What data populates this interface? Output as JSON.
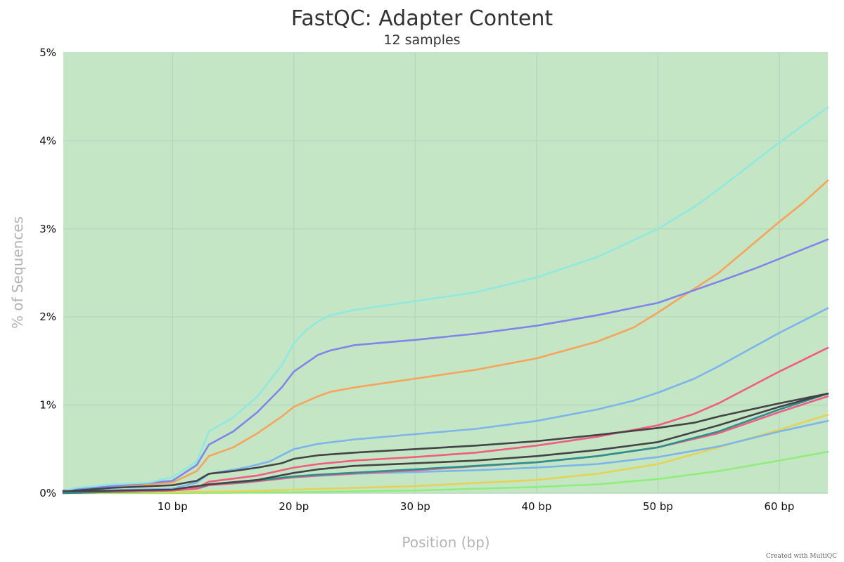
{
  "chart_data": {
    "type": "line",
    "title": "FastQC: Adapter Content",
    "subtitle": "12 samples",
    "xlabel": "Position (bp)",
    "ylabel": "% of Sequences",
    "credit": "Created with MultiQC",
    "xlim": [
      1,
      64
    ],
    "ylim": [
      0,
      5
    ],
    "x_ticks": [
      10,
      20,
      30,
      40,
      50,
      60
    ],
    "x_tick_labels": [
      "10 bp",
      "20 bp",
      "30 bp",
      "40 bp",
      "50 bp",
      "60 bp"
    ],
    "y_ticks": [
      0,
      1,
      2,
      3,
      4,
      5
    ],
    "y_tick_labels": [
      "0%",
      "1%",
      "2%",
      "3%",
      "4%",
      "5%"
    ],
    "grid": true,
    "pass_band": {
      "from": 0,
      "to": 5,
      "color": "#c4e6c4"
    },
    "series": [
      {
        "color": "#90ed7d",
        "points": [
          [
            1,
            0.0
          ],
          [
            10,
            0.0
          ],
          [
            20,
            0.01
          ],
          [
            30,
            0.03
          ],
          [
            40,
            0.07
          ],
          [
            45,
            0.1
          ],
          [
            50,
            0.16
          ],
          [
            55,
            0.25
          ],
          [
            60,
            0.37
          ],
          [
            64,
            0.47
          ]
        ]
      },
      {
        "color": "#e4d354",
        "points": [
          [
            1,
            0.0
          ],
          [
            10,
            0.01
          ],
          [
            15,
            0.02
          ],
          [
            20,
            0.04
          ],
          [
            30,
            0.08
          ],
          [
            40,
            0.15
          ],
          [
            45,
            0.22
          ],
          [
            50,
            0.33
          ],
          [
            55,
            0.52
          ],
          [
            60,
            0.72
          ],
          [
            64,
            0.89
          ]
        ]
      },
      {
        "color": "#7cb5ec",
        "points": [
          [
            1,
            0.02
          ],
          [
            10,
            0.04
          ],
          [
            13,
            0.1
          ],
          [
            15,
            0.12
          ],
          [
            20,
            0.18
          ],
          [
            25,
            0.22
          ],
          [
            30,
            0.24
          ],
          [
            35,
            0.26
          ],
          [
            40,
            0.29
          ],
          [
            45,
            0.33
          ],
          [
            50,
            0.41
          ],
          [
            55,
            0.53
          ],
          [
            60,
            0.7
          ],
          [
            64,
            0.82
          ]
        ]
      },
      {
        "color": "#f15c80",
        "points": [
          [
            1,
            0.0
          ],
          [
            10,
            0.03
          ],
          [
            12,
            0.05
          ],
          [
            13,
            0.09
          ],
          [
            16,
            0.12
          ],
          [
            20,
            0.18
          ],
          [
            22,
            0.2
          ],
          [
            30,
            0.26
          ],
          [
            40,
            0.35
          ],
          [
            45,
            0.42
          ],
          [
            50,
            0.52
          ],
          [
            55,
            0.68
          ],
          [
            60,
            0.92
          ],
          [
            64,
            1.1
          ]
        ]
      },
      {
        "color": "#2b908f",
        "points": [
          [
            1,
            0.0
          ],
          [
            10,
            0.03
          ],
          [
            12,
            0.06
          ],
          [
            13,
            0.1
          ],
          [
            16,
            0.13
          ],
          [
            20,
            0.19
          ],
          [
            22,
            0.21
          ],
          [
            30,
            0.27
          ],
          [
            40,
            0.35
          ],
          [
            45,
            0.42
          ],
          [
            50,
            0.52
          ],
          [
            55,
            0.7
          ],
          [
            60,
            0.95
          ],
          [
            64,
            1.13
          ]
        ]
      },
      {
        "color": "#f7a35c",
        "points": [
          [
            1,
            0.03
          ],
          [
            10,
            0.12
          ],
          [
            12,
            0.25
          ],
          [
            13,
            0.42
          ],
          [
            15,
            0.52
          ],
          [
            17,
            0.68
          ],
          [
            19,
            0.87
          ],
          [
            20,
            0.98
          ],
          [
            22,
            1.1
          ],
          [
            23,
            1.15
          ],
          [
            25,
            1.2
          ],
          [
            30,
            1.3
          ],
          [
            35,
            1.4
          ],
          [
            40,
            1.53
          ],
          [
            45,
            1.72
          ],
          [
            48,
            1.88
          ],
          [
            50,
            2.05
          ],
          [
            55,
            2.5
          ],
          [
            60,
            3.08
          ],
          [
            62,
            3.3
          ],
          [
            64,
            3.55
          ]
        ]
      },
      {
        "color": "#8085e9",
        "points": [
          [
            1,
            0.03
          ],
          [
            10,
            0.14
          ],
          [
            12,
            0.32
          ],
          [
            13,
            0.55
          ],
          [
            15,
            0.7
          ],
          [
            17,
            0.92
          ],
          [
            19,
            1.2
          ],
          [
            20,
            1.38
          ],
          [
            22,
            1.57
          ],
          [
            23,
            1.62
          ],
          [
            25,
            1.68
          ],
          [
            30,
            1.74
          ],
          [
            35,
            1.81
          ],
          [
            40,
            1.9
          ],
          [
            45,
            2.02
          ],
          [
            50,
            2.16
          ],
          [
            55,
            2.4
          ],
          [
            58,
            2.55
          ],
          [
            60,
            2.66
          ],
          [
            64,
            2.88
          ]
        ]
      },
      {
        "color": "#91e8e1",
        "points": [
          [
            1,
            0.02
          ],
          [
            2,
            0.06
          ],
          [
            5,
            0.1
          ],
          [
            8,
            0.12
          ],
          [
            10,
            0.18
          ],
          [
            12,
            0.36
          ],
          [
            13,
            0.7
          ],
          [
            15,
            0.86
          ],
          [
            17,
            1.1
          ],
          [
            19,
            1.45
          ],
          [
            20,
            1.7
          ],
          [
            21,
            1.85
          ],
          [
            22,
            1.95
          ],
          [
            23,
            2.02
          ],
          [
            25,
            2.08
          ],
          [
            30,
            2.18
          ],
          [
            35,
            2.28
          ],
          [
            40,
            2.45
          ],
          [
            45,
            2.68
          ],
          [
            50,
            3.0
          ],
          [
            53,
            3.25
          ],
          [
            55,
            3.45
          ],
          [
            60,
            3.98
          ],
          [
            64,
            4.38
          ]
        ]
      },
      {
        "color": "#7cb5ec",
        "points": [
          [
            1,
            0.02
          ],
          [
            10,
            0.05
          ],
          [
            12,
            0.12
          ],
          [
            13,
            0.22
          ],
          [
            16,
            0.29
          ],
          [
            18,
            0.36
          ],
          [
            20,
            0.5
          ],
          [
            22,
            0.56
          ],
          [
            25,
            0.61
          ],
          [
            30,
            0.67
          ],
          [
            35,
            0.73
          ],
          [
            40,
            0.82
          ],
          [
            45,
            0.95
          ],
          [
            48,
            1.05
          ],
          [
            50,
            1.14
          ],
          [
            53,
            1.3
          ],
          [
            55,
            1.44
          ],
          [
            60,
            1.82
          ],
          [
            64,
            2.1
          ]
        ]
      },
      {
        "color": "#f15c80",
        "points": [
          [
            1,
            0.02
          ],
          [
            10,
            0.03
          ],
          [
            12,
            0.06
          ],
          [
            13,
            0.13
          ],
          [
            17,
            0.2
          ],
          [
            20,
            0.29
          ],
          [
            22,
            0.33
          ],
          [
            25,
            0.37
          ],
          [
            30,
            0.41
          ],
          [
            35,
            0.46
          ],
          [
            40,
            0.54
          ],
          [
            45,
            0.64
          ],
          [
            50,
            0.77
          ],
          [
            53,
            0.9
          ],
          [
            55,
            1.02
          ],
          [
            60,
            1.38
          ],
          [
            64,
            1.65
          ]
        ]
      },
      {
        "color": "#434348",
        "points": [
          [
            1,
            0.02
          ],
          [
            10,
            0.04
          ],
          [
            12,
            0.08
          ],
          [
            13,
            0.1
          ],
          [
            17,
            0.15
          ],
          [
            20,
            0.23
          ],
          [
            22,
            0.27
          ],
          [
            25,
            0.31
          ],
          [
            30,
            0.34
          ],
          [
            35,
            0.37
          ],
          [
            40,
            0.42
          ],
          [
            45,
            0.49
          ],
          [
            50,
            0.58
          ],
          [
            55,
            0.77
          ],
          [
            60,
            0.98
          ],
          [
            64,
            1.13
          ]
        ]
      },
      {
        "color": "#434348",
        "points": [
          [
            1,
            0.02
          ],
          [
            5,
            0.06
          ],
          [
            10,
            0.09
          ],
          [
            12,
            0.14
          ],
          [
            13,
            0.22
          ],
          [
            15,
            0.25
          ],
          [
            17,
            0.29
          ],
          [
            19,
            0.34
          ],
          [
            20,
            0.39
          ],
          [
            22,
            0.43
          ],
          [
            25,
            0.46
          ],
          [
            30,
            0.5
          ],
          [
            35,
            0.54
          ],
          [
            40,
            0.59
          ],
          [
            45,
            0.66
          ],
          [
            50,
            0.74
          ],
          [
            53,
            0.8
          ],
          [
            55,
            0.87
          ],
          [
            60,
            1.02
          ],
          [
            64,
            1.13
          ]
        ]
      }
    ]
  }
}
